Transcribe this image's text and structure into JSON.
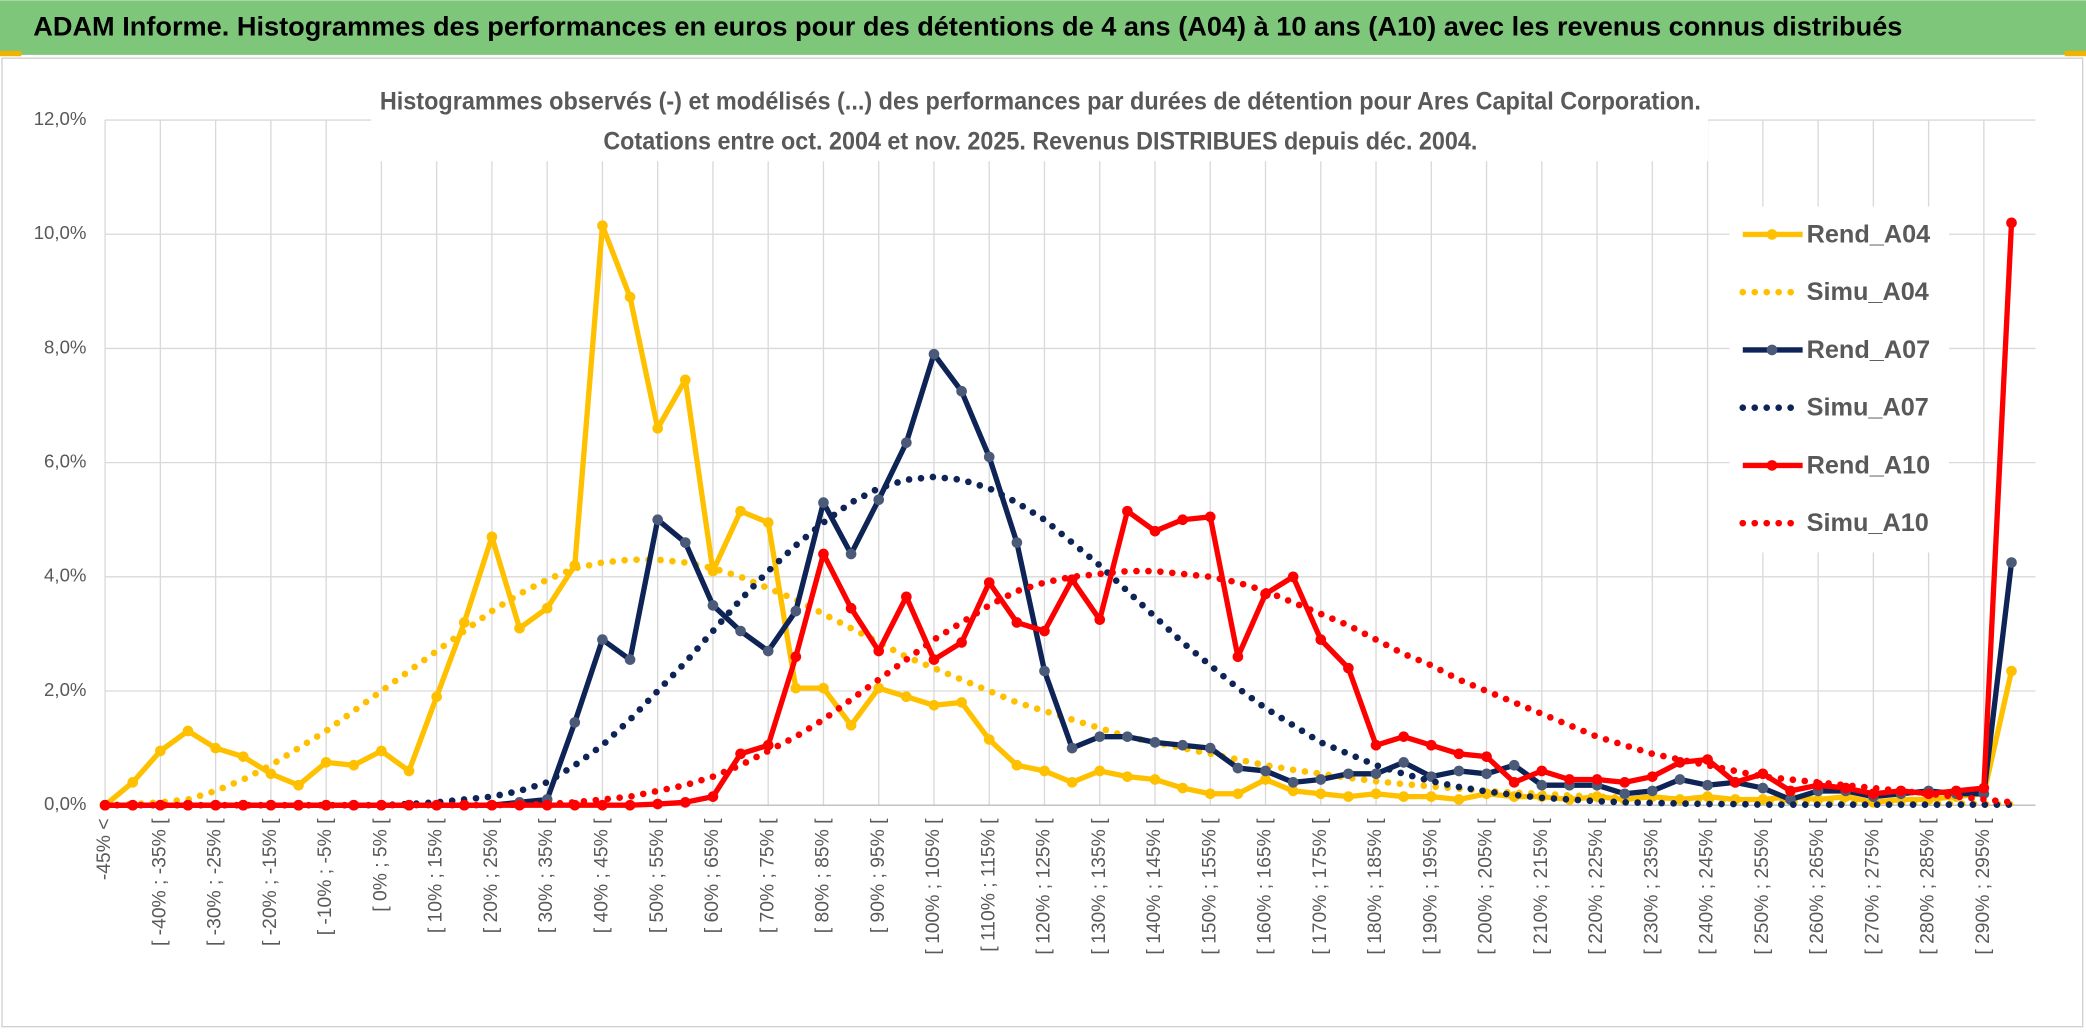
{
  "header": "ADAM Informe. Histogrammes des performances en euros pour des détentions de 4 ans (A04) à 10 ans (A10) avec les revenus connus distribués",
  "chart_data": {
    "type": "line",
    "title": "Histogrammes observés (-) et modélisés (...) des performances par durées de détention pour Ares Capital Corporation.",
    "subtitle": "Cotations entre oct. 2004 et nov. 2025. Revenus DISTRIBUES depuis déc. 2004.",
    "categories": [
      "-45% <",
      null,
      "[ -40% ; -35% [",
      null,
      "[ -30% ; -25% [",
      null,
      "[ -20% ; -15% [",
      null,
      "[ -10% ; -5% [",
      null,
      "[ 0% ; 5% [",
      null,
      "[ 10% ; 15% [",
      null,
      "[ 20% ; 25% [",
      null,
      "[ 30% ; 35% [",
      null,
      "[ 40% ; 45% [",
      null,
      "[ 50% ; 55% [",
      null,
      "[ 60% ; 65% [",
      null,
      "[ 70% ; 75% [",
      null,
      "[ 80% ; 85% [",
      null,
      "[ 90% ; 95% [",
      null,
      "[ 100% ; 105% [",
      null,
      "[ 110% ; 115% [",
      null,
      "[ 120% ; 125% [",
      null,
      "[ 130% ; 135% [",
      null,
      "[ 140% ; 145% [",
      null,
      "[ 150% ; 155% [",
      null,
      "[ 160% ; 165% [",
      null,
      "[ 170% ; 175% [",
      null,
      "[ 180% ; 185% [",
      null,
      "[ 190% ; 195% [",
      null,
      "[ 200% ; 205% [",
      null,
      "[ 210% ; 215% [",
      null,
      "[ 220% ; 225% [",
      null,
      "[ 230% ; 235% [",
      null,
      "[ 240% ; 245% [",
      null,
      "[ 250% ; 255% [",
      null,
      "[ 260% ; 265% [",
      null,
      "[ 270% ; 275% [",
      null,
      "[ 280% ; 285% [",
      null,
      "[ 290% ; 295% [",
      null
    ],
    "series": [
      {
        "name": "Rend_A04",
        "color": "#ffc000",
        "style": "solid",
        "markers": true,
        "values": [
          0,
          0.4,
          0.95,
          1.3,
          1.0,
          0.85,
          0.55,
          0.35,
          0.75,
          0.7,
          0.95,
          0.6,
          1.9,
          3.2,
          4.7,
          3.1,
          3.45,
          4.2,
          10.15,
          8.9,
          6.6,
          7.45,
          4.1,
          5.15,
          4.95,
          2.05,
          2.05,
          1.4,
          2.05,
          1.9,
          1.75,
          1.8,
          1.15,
          0.7,
          0.6,
          0.4,
          0.6,
          0.5,
          0.45,
          0.3,
          0.2,
          0.2,
          0.45,
          0.25,
          0.2,
          0.15,
          0.2,
          0.15,
          0.15,
          0.1,
          0.2,
          0.15,
          0.15,
          0.1,
          0.15,
          0.1,
          0.15,
          0.1,
          0.15,
          0.1,
          0.1,
          0.15,
          0.1,
          0.15,
          0.05,
          0.1,
          0.1,
          0.15,
          0.2,
          2.35
        ]
      },
      {
        "name": "Simu_A04",
        "color": "#ffc000",
        "style": "dotted",
        "markers": false,
        "values": [
          0,
          0.02,
          0.05,
          0.1,
          0.25,
          0.45,
          0.7,
          1.0,
          1.3,
          1.65,
          2.0,
          2.35,
          2.7,
          3.05,
          3.4,
          3.7,
          3.95,
          4.15,
          4.25,
          4.3,
          4.3,
          4.25,
          4.15,
          4.0,
          3.8,
          3.6,
          3.35,
          3.1,
          2.85,
          2.6,
          2.4,
          2.2,
          2.0,
          1.8,
          1.65,
          1.5,
          1.35,
          1.2,
          1.1,
          1.0,
          0.9,
          0.8,
          0.7,
          0.62,
          0.55,
          0.48,
          0.42,
          0.37,
          0.33,
          0.29,
          0.25,
          0.22,
          0.2,
          0.17,
          0.15,
          0.13,
          0.12,
          0.1,
          0.09,
          0.08,
          0.07,
          0.06,
          0.05,
          0.05,
          0.04,
          0.04,
          0.03,
          0.03,
          0.02,
          0.02
        ]
      },
      {
        "name": "Rend_A07",
        "color": "#0e2356",
        "marker_color": "#4a5a78",
        "style": "solid",
        "markers": true,
        "values": [
          0,
          0,
          0,
          0,
          0,
          0,
          0,
          0,
          0,
          0,
          0,
          0,
          0,
          0,
          0,
          0.05,
          0.1,
          1.45,
          2.9,
          2.55,
          5.0,
          4.6,
          3.5,
          3.05,
          2.7,
          3.4,
          5.3,
          4.4,
          5.35,
          6.35,
          7.9,
          7.25,
          6.1,
          4.6,
          2.35,
          1.0,
          1.2,
          1.2,
          1.1,
          1.05,
          1.0,
          0.65,
          0.6,
          0.4,
          0.45,
          0.55,
          0.55,
          0.75,
          0.5,
          0.6,
          0.55,
          0.7,
          0.35,
          0.35,
          0.35,
          0.2,
          0.25,
          0.45,
          0.35,
          0.4,
          0.3,
          0.1,
          0.25,
          0.25,
          0.15,
          0.2,
          0.25,
          0.2,
          0.2,
          4.25
        ]
      },
      {
        "name": "Simu_A07",
        "color": "#0e2356",
        "style": "dotted",
        "markers": false,
        "values": [
          0,
          0,
          0,
          0,
          0,
          0,
          0,
          0,
          0,
          0,
          0,
          0.02,
          0.05,
          0.1,
          0.15,
          0.25,
          0.4,
          0.7,
          1.05,
          1.5,
          2.0,
          2.5,
          3.05,
          3.6,
          4.1,
          4.55,
          4.95,
          5.3,
          5.55,
          5.7,
          5.75,
          5.7,
          5.55,
          5.3,
          5.0,
          4.6,
          4.2,
          3.75,
          3.3,
          2.85,
          2.45,
          2.05,
          1.7,
          1.4,
          1.1,
          0.9,
          0.7,
          0.55,
          0.42,
          0.32,
          0.24,
          0.18,
          0.13,
          0.1,
          0.07,
          0.05,
          0.04,
          0.03,
          0.02,
          0.02,
          0.01,
          0.01,
          0.01,
          0.01,
          0.01,
          0.01,
          0.01,
          0.01,
          0.01,
          0.01
        ]
      },
      {
        "name": "Rend_A10",
        "color": "#ff0000",
        "style": "solid",
        "markers": true,
        "values": [
          0,
          0,
          0,
          0,
          0,
          0,
          0,
          0,
          0,
          0,
          0,
          0,
          0,
          0,
          0,
          0,
          0,
          0,
          0,
          0,
          0.02,
          0.05,
          0.15,
          0.9,
          1.05,
          2.6,
          4.4,
          3.45,
          2.7,
          3.65,
          2.55,
          2.85,
          3.9,
          3.2,
          3.05,
          3.95,
          3.25,
          5.15,
          4.8,
          5.0,
          5.05,
          2.6,
          3.7,
          4.0,
          2.9,
          2.4,
          1.05,
          1.2,
          1.05,
          0.9,
          0.85,
          0.4,
          0.6,
          0.45,
          0.45,
          0.4,
          0.5,
          0.75,
          0.8,
          0.4,
          0.55,
          0.25,
          0.35,
          0.3,
          0.2,
          0.25,
          0.2,
          0.25,
          0.3,
          10.2
        ]
      },
      {
        "name": "Simu_A10",
        "color": "#ff0000",
        "style": "dotted",
        "markers": false,
        "values": [
          0,
          0,
          0,
          0,
          0,
          0,
          0,
          0,
          0,
          0,
          0,
          0,
          0,
          0,
          0,
          0.01,
          0.02,
          0.05,
          0.1,
          0.15,
          0.25,
          0.35,
          0.5,
          0.7,
          0.95,
          1.2,
          1.5,
          1.85,
          2.2,
          2.55,
          2.9,
          3.2,
          3.5,
          3.75,
          3.9,
          4.0,
          4.05,
          4.1,
          4.1,
          4.05,
          4.0,
          3.9,
          3.75,
          3.55,
          3.35,
          3.15,
          2.9,
          2.65,
          2.45,
          2.2,
          2.0,
          1.8,
          1.6,
          1.4,
          1.2,
          1.05,
          0.9,
          0.8,
          0.7,
          0.6,
          0.5,
          0.45,
          0.4,
          0.35,
          0.3,
          0.25,
          0.2,
          0.15,
          0.1,
          0.05
        ]
      }
    ],
    "ylim": [
      0,
      12
    ],
    "yticks": [
      {
        "value": 0,
        "label": "0,0%"
      },
      {
        "value": 2,
        "label": "2,0%"
      },
      {
        "value": 4,
        "label": "4,0%"
      },
      {
        "value": 6,
        "label": "6,0%"
      },
      {
        "value": 8,
        "label": "8,0%"
      },
      {
        "value": 10,
        "label": "10,0%"
      },
      {
        "value": 12,
        "label": "12,0%"
      }
    ],
    "grid": true,
    "legend": "upper right"
  }
}
